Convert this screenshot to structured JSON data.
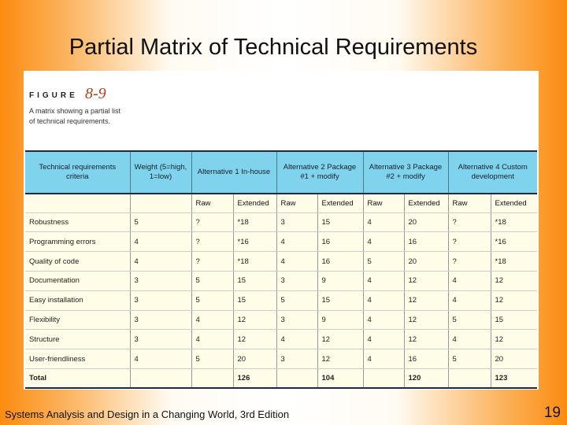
{
  "slide": {
    "title": "Partial Matrix of Technical Requirements",
    "footer": "Systems Analysis and Design in a Changing World, 3rd Edition",
    "page_number": "19"
  },
  "figure": {
    "label": "FIGURE",
    "number": "8-9",
    "caption": "A matrix showing a partial list of technical requirements."
  },
  "matrix": {
    "headers": [
      "Technical requirements criteria",
      "Weight (5=high, 1=low)",
      "Alternative 1 In-house",
      "Alternative 2 Package #1 + modify",
      "Alternative 3 Package #2 + modify",
      "Alternative 4 Custom development"
    ],
    "subheaders": [
      "Raw",
      "Extended",
      "Raw",
      "Extended",
      "Raw",
      "Extended",
      "Raw",
      "Extended"
    ],
    "rows": [
      [
        "Robustness",
        "5",
        "?",
        "*18",
        "3",
        "15",
        "4",
        "20",
        "?",
        "*18"
      ],
      [
        "Programming errors",
        "4",
        "?",
        "*16",
        "4",
        "16",
        "4",
        "16",
        "?",
        "*16"
      ],
      [
        "Quality of code",
        "4",
        "?",
        "*18",
        "4",
        "16",
        "5",
        "20",
        "?",
        "*18"
      ],
      [
        "Documentation",
        "3",
        "5",
        "15",
        "3",
        "9",
        "4",
        "12",
        "4",
        "12"
      ],
      [
        "Easy installation",
        "3",
        "5",
        "15",
        "5",
        "15",
        "4",
        "12",
        "4",
        "12"
      ],
      [
        "Flexibility",
        "3",
        "4",
        "12",
        "3",
        "9",
        "4",
        "12",
        "5",
        "15"
      ],
      [
        "Structure",
        "3",
        "4",
        "12",
        "4",
        "12",
        "4",
        "12",
        "4",
        "12"
      ],
      [
        "User-friendliness",
        "4",
        "5",
        "20",
        "3",
        "12",
        "4",
        "16",
        "5",
        "20"
      ]
    ],
    "total": [
      "Total",
      "",
      "",
      "126",
      "",
      "104",
      "",
      "120",
      "",
      "123"
    ]
  }
}
